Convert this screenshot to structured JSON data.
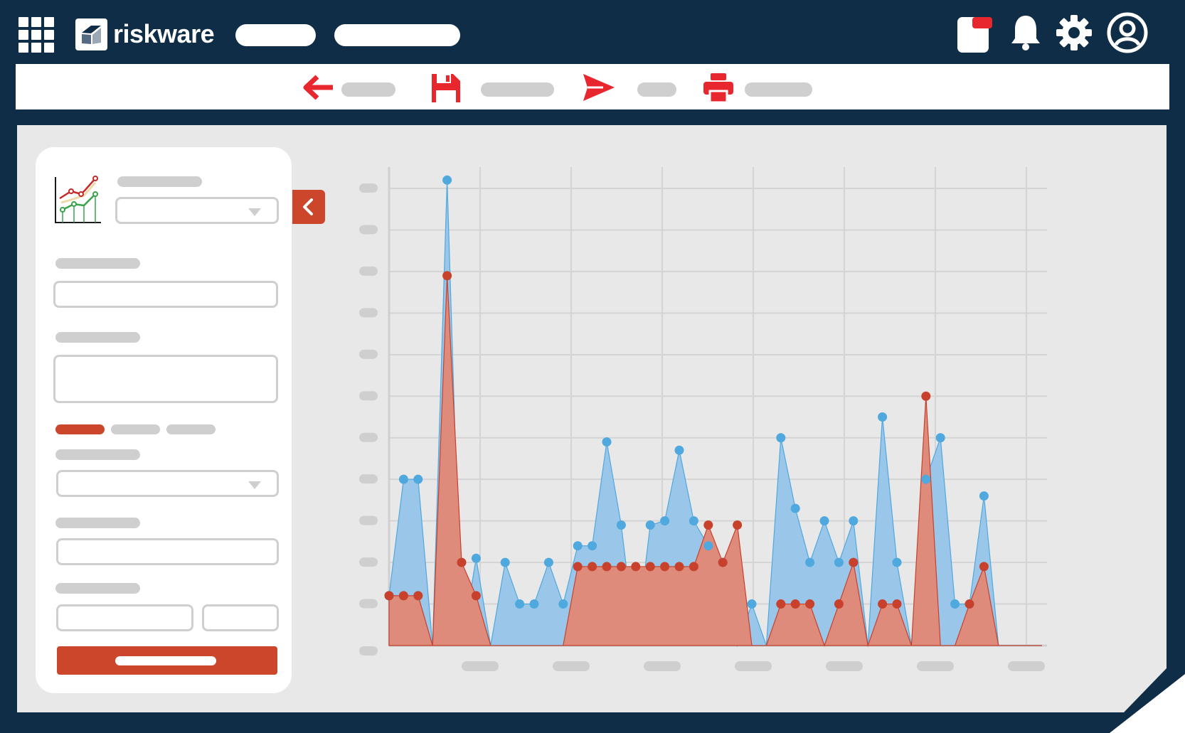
{
  "app": {
    "name": "riskware"
  },
  "colors": {
    "frame": "#0f2d47",
    "accent": "#cc462b",
    "toolbar_icon": "#e8262e",
    "series_a": "#9ac6ea",
    "series_b": "#de8b7c",
    "series_a_point": "#4fa8de",
    "series_b_point": "#c7412c"
  },
  "topbar": {
    "apps_icon": "grid-icon",
    "logo_icon": "riskware-logo-icon",
    "icons": [
      "notification-card-icon",
      "bell-icon",
      "gear-icon",
      "user-avatar-icon"
    ]
  },
  "toolbar": {
    "icons": [
      "back-arrow-icon",
      "save-icon",
      "send-icon",
      "print-icon"
    ]
  },
  "panel": {
    "chart_icon": "line-chart-icon",
    "collapse_icon": "chevron-left-icon"
  },
  "chart_data": {
    "type": "area",
    "x": [
      1,
      2,
      3,
      4,
      5,
      6,
      7,
      8,
      9,
      10,
      11,
      12,
      13,
      14,
      15,
      16,
      17,
      18,
      19,
      20,
      21,
      22,
      23,
      24,
      25,
      26,
      27,
      28,
      29,
      30,
      31,
      32,
      33,
      34,
      35,
      36,
      37,
      38,
      39,
      40,
      41,
      42,
      43,
      44,
      45,
      46
    ],
    "series": [
      {
        "values": [
          1.2,
          4,
          4,
          0,
          11.2,
          0,
          2.1,
          0,
          2,
          1,
          1,
          2,
          1,
          2.4,
          2.4,
          4.9,
          2.9,
          0,
          2.9,
          3,
          4.7,
          3,
          2.4,
          2,
          0,
          1,
          0,
          5,
          3.3,
          2,
          3,
          2,
          3,
          0,
          5.5,
          2,
          0,
          4,
          5,
          1,
          1,
          3.6,
          0,
          0,
          0,
          0
        ]
      },
      {
        "values": [
          1.2,
          1.2,
          1.2,
          0,
          8.9,
          2,
          1.2,
          0,
          0,
          0,
          0,
          0,
          0,
          1.9,
          1.9,
          1.9,
          1.9,
          1.9,
          1.9,
          1.9,
          1.9,
          1.9,
          2.9,
          2,
          2.9,
          0,
          0,
          1,
          1,
          1,
          0,
          1,
          2,
          0,
          1,
          1,
          0,
          6,
          0,
          0,
          1,
          1.9,
          0,
          0,
          0,
          0
        ]
      }
    ]
  }
}
